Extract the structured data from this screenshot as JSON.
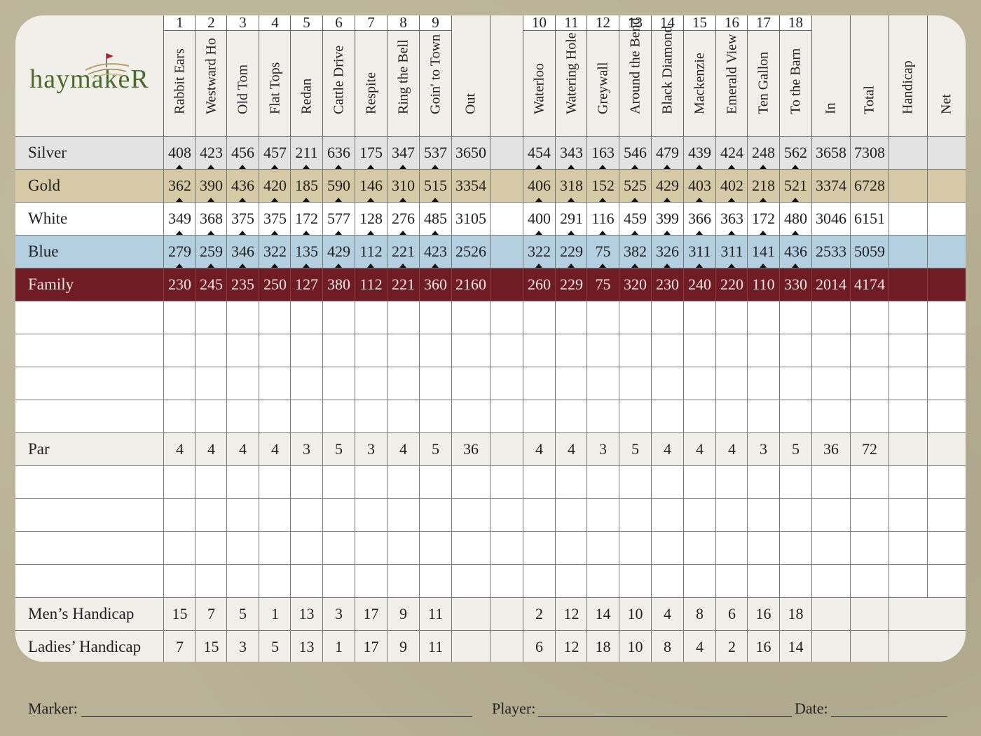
{
  "logo": {
    "text": "haymakeR"
  },
  "holes_front": [
    {
      "number": "1",
      "name": "Rabbit Ears"
    },
    {
      "number": "2",
      "name": "Westward Ho"
    },
    {
      "number": "3",
      "name": "Old Tom"
    },
    {
      "number": "4",
      "name": "Flat Tops"
    },
    {
      "number": "5",
      "name": "Redan"
    },
    {
      "number": "6",
      "name": "Cattle Drive"
    },
    {
      "number": "7",
      "name": "Respite"
    },
    {
      "number": "8",
      "name": "Ring the Bell"
    },
    {
      "number": "9",
      "name": "Goin' to Town"
    }
  ],
  "holes_back": [
    {
      "number": "10",
      "name": "Waterloo"
    },
    {
      "number": "11",
      "name": "Watering Hole"
    },
    {
      "number": "12",
      "name": "Greywall"
    },
    {
      "number": "13",
      "name": "Around the Bend"
    },
    {
      "number": "14",
      "name": "Black Diamond"
    },
    {
      "number": "15",
      "name": "Mackenzie"
    },
    {
      "number": "16",
      "name": "Emerald View"
    },
    {
      "number": "17",
      "name": "Ten Gallon"
    },
    {
      "number": "18",
      "name": "To the Barn"
    }
  ],
  "column_headers": {
    "out": "Out",
    "in": "In",
    "total": "Total",
    "handicap": "Handicap",
    "net": "Net"
  },
  "tees": [
    {
      "name": "Silver",
      "color": "#e3e3e3",
      "front": [
        "408",
        "423",
        "456",
        "457",
        "211",
        "636",
        "175",
        "347",
        "537"
      ],
      "out": "3650",
      "back": [
        "454",
        "343",
        "163",
        "546",
        "479",
        "439",
        "424",
        "248",
        "562"
      ],
      "in": "3658",
      "total": "7308"
    },
    {
      "name": "Gold",
      "color": "#d6c9a6",
      "front": [
        "362",
        "390",
        "436",
        "420",
        "185",
        "590",
        "146",
        "310",
        "515"
      ],
      "out": "3354",
      "back": [
        "406",
        "318",
        "152",
        "525",
        "429",
        "403",
        "402",
        "218",
        "521"
      ],
      "in": "3374",
      "total": "6728"
    },
    {
      "name": "White",
      "color": "#ffffff",
      "front": [
        "349",
        "368",
        "375",
        "375",
        "172",
        "577",
        "128",
        "276",
        "485"
      ],
      "out": "3105",
      "back": [
        "400",
        "291",
        "116",
        "459",
        "399",
        "366",
        "363",
        "172",
        "480"
      ],
      "in": "3046",
      "total": "6151"
    },
    {
      "name": "Blue",
      "color": "#b3cfe0",
      "front": [
        "279",
        "259",
        "346",
        "322",
        "135",
        "429",
        "112",
        "221",
        "423"
      ],
      "out": "2526",
      "back": [
        "322",
        "229",
        "75",
        "382",
        "326",
        "311",
        "311",
        "141",
        "436"
      ],
      "in": "2533",
      "total": "5059"
    },
    {
      "name": "Family",
      "color": "#6f1c24",
      "front": [
        "230",
        "245",
        "235",
        "250",
        "127",
        "380",
        "112",
        "221",
        "360"
      ],
      "out": "2160",
      "back": [
        "260",
        "229",
        "75",
        "320",
        "230",
        "240",
        "220",
        "110",
        "330"
      ],
      "in": "2014",
      "total": "4174"
    }
  ],
  "par": {
    "label": "Par",
    "front": [
      "4",
      "4",
      "4",
      "4",
      "3",
      "5",
      "3",
      "4",
      "5"
    ],
    "out": "36",
    "back": [
      "4",
      "4",
      "3",
      "5",
      "4",
      "4",
      "4",
      "3",
      "5"
    ],
    "in": "36",
    "total": "72"
  },
  "mens_handicap": {
    "label": "Men’s Handicap",
    "front": [
      "15",
      "7",
      "5",
      "1",
      "13",
      "3",
      "17",
      "9",
      "11"
    ],
    "back": [
      "2",
      "12",
      "14",
      "10",
      "4",
      "8",
      "6",
      "16",
      "18"
    ]
  },
  "ladies_handicap": {
    "label": "Ladies’ Handicap",
    "front": [
      "7",
      "15",
      "3",
      "5",
      "13",
      "1",
      "17",
      "9",
      "11"
    ],
    "back": [
      "6",
      "12",
      "18",
      "10",
      "8",
      "4",
      "2",
      "16",
      "14"
    ]
  },
  "footer": {
    "marker_label": "Marker:",
    "player_label": "Player:",
    "date_label": "Date:"
  }
}
